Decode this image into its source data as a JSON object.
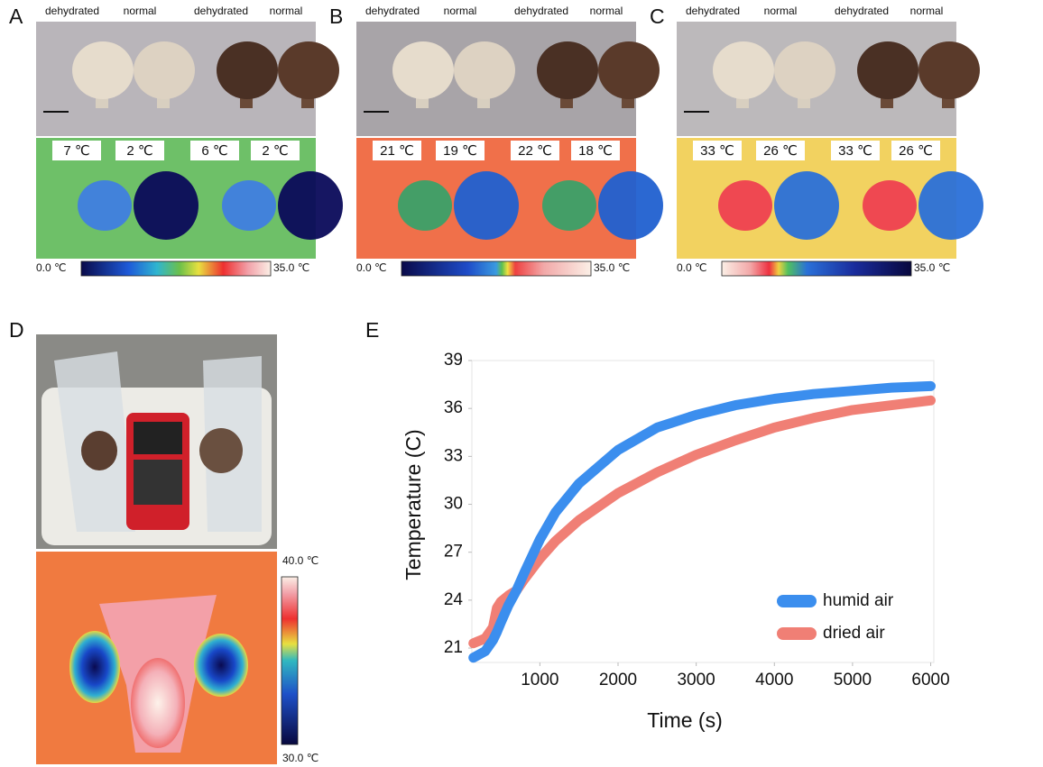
{
  "panels": [
    {
      "label": "A",
      "photo_labels": [
        "dehydrated",
        "normal",
        "dehydrated",
        "normal"
      ],
      "temperatures": [
        "7 ℃",
        "2 ℃",
        "6 ℃",
        "2 ℃"
      ],
      "scale_min": "0.0 ℃",
      "scale_max": "35.0 ℃"
    },
    {
      "label": "B",
      "photo_labels": [
        "dehydrated",
        "normal",
        "dehydrated",
        "normal"
      ],
      "temperatures": [
        "21 ℃",
        "19 ℃",
        "22 ℃",
        "18 ℃"
      ],
      "scale_min": "0.0 ℃",
      "scale_max": "35.0 ℃"
    },
    {
      "label": "C",
      "photo_labels": [
        "dehydrated",
        "normal",
        "dehydrated",
        "normal"
      ],
      "temperatures": [
        "33 ℃",
        "26 ℃",
        "33 ℃",
        "26 ℃"
      ],
      "scale_min": "0.0 ℃",
      "scale_max": "35.0 ℃"
    },
    {
      "label": "D",
      "scale_max": "40.0 ℃",
      "scale_min": "30.0 ℃"
    }
  ],
  "chart_data": {
    "type": "line",
    "panel_label": "E",
    "xlabel": "Time (s)",
    "ylabel": "Temperature (C)",
    "x": [
      150,
      300,
      400,
      450,
      500,
      600,
      700,
      800,
      1000,
      1200,
      1500,
      2000,
      2500,
      3000,
      3500,
      4000,
      4500,
      5000,
      5500,
      6000
    ],
    "series": [
      {
        "name": "humid air",
        "color": "#3b8eee",
        "values": [
          20.4,
          20.8,
          21.5,
          22.0,
          22.6,
          23.7,
          24.6,
          25.7,
          27.8,
          29.5,
          31.3,
          33.4,
          34.8,
          35.6,
          36.2,
          36.6,
          36.9,
          37.1,
          37.3,
          37.4
        ]
      },
      {
        "name": "dried air",
        "color": "#f07f75",
        "values": [
          21.3,
          21.6,
          22.3,
          23.5,
          23.9,
          24.3,
          24.6,
          25.3,
          26.6,
          27.7,
          29.0,
          30.7,
          32.0,
          33.1,
          34.0,
          34.8,
          35.4,
          35.9,
          36.2,
          36.5
        ]
      }
    ],
    "xlim": [
      130,
      6040
    ],
    "ylim": [
      20.1,
      39
    ],
    "xticks": [
      1000,
      2000,
      3000,
      4000,
      5000,
      6000
    ],
    "yticks": [
      21,
      24,
      27,
      30,
      33,
      36,
      39
    ],
    "legend": "lower-right"
  }
}
